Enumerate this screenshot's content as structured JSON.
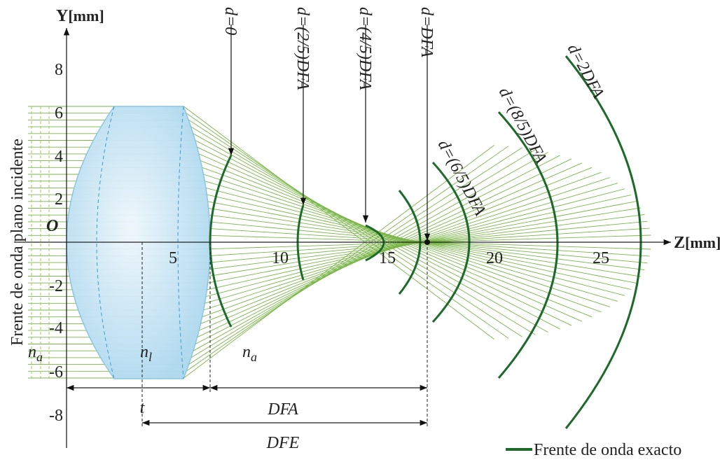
{
  "axes": {
    "y_label": "Y",
    "y_unit": "[mm]",
    "z_label": "Z",
    "z_unit": "[mm]",
    "origin": "O",
    "y_ticks": [
      "8",
      "6",
      "4",
      "2",
      "-2",
      "-4",
      "-6",
      "-8"
    ],
    "z_ticks": [
      "5",
      "10",
      "15",
      "20",
      "25"
    ]
  },
  "side_label": "Frente de onda plano incidente",
  "media": {
    "symbol": "n",
    "air": "a",
    "lens": "l"
  },
  "distances": [
    "d=0",
    "d=(2/5)DFA",
    "d=(4/5)DFA",
    "d=DFA",
    "d=(6/5)DFA",
    "d=(8/5)DFA",
    "d=2DFA"
  ],
  "dimensions": {
    "thickness": "t",
    "dfa": "DFA",
    "dfe": "DFE"
  },
  "legend": "Frente de onda exacto"
}
